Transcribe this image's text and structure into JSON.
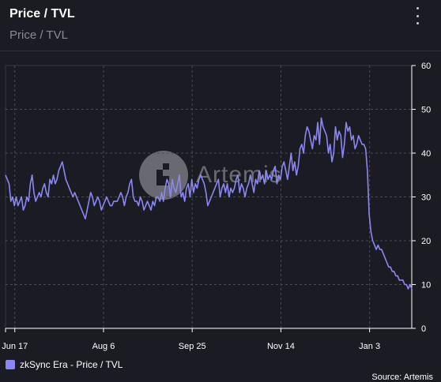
{
  "header": {
    "title": "Price / TVL",
    "subtitle": "Price / TVL"
  },
  "watermark": {
    "text": "Artemis"
  },
  "source": "Source: Artemis",
  "colors": {
    "line": "#8b87f2",
    "grid": "#4a4a58",
    "text": "#ffffff"
  },
  "chart_data": {
    "type": "line",
    "x_tick_labels": [
      "Jun 17",
      "Aug 6",
      "Sep 25",
      "Nov 14",
      "Jan 3"
    ],
    "x_tick_index": [
      3,
      53,
      103,
      153,
      203
    ],
    "y_ticks": [
      0,
      10,
      20,
      30,
      40,
      50,
      60
    ],
    "ylim": [
      0,
      60
    ],
    "grid": true,
    "legend": "bottom-left",
    "series": [
      {
        "name": "zkSync Era - Price / TVL",
        "values": [
          35,
          34,
          33,
          29,
          30,
          28,
          30,
          28,
          29,
          30,
          27,
          28,
          30,
          29,
          33,
          35,
          31,
          29,
          30,
          31,
          30,
          32,
          33,
          31,
          30,
          34,
          33,
          35,
          33,
          34,
          36,
          37,
          38,
          36,
          34,
          33,
          32,
          31,
          30,
          31,
          30,
          29,
          28,
          27,
          26,
          25,
          27,
          29,
          31,
          30,
          28,
          29,
          30,
          29,
          27,
          28,
          29,
          30,
          29,
          28,
          28,
          29,
          29,
          29,
          30,
          31,
          30,
          28,
          30,
          31,
          33,
          34,
          30,
          29,
          29,
          28,
          30,
          29,
          27,
          28,
          29,
          28,
          27,
          29,
          28,
          30,
          30,
          29,
          31,
          29,
          32,
          34,
          33,
          30,
          34,
          32,
          31,
          33,
          35,
          30,
          31,
          29,
          32,
          33,
          30,
          34,
          31,
          33,
          32,
          34,
          35,
          34,
          33,
          31,
          28,
          29,
          30,
          31,
          32,
          33,
          34,
          30,
          32,
          33,
          31,
          33,
          30,
          32,
          31,
          32,
          34,
          35,
          31,
          33,
          32,
          30,
          32,
          33,
          35,
          33,
          31,
          34,
          33,
          36,
          34,
          35,
          33,
          36,
          34,
          35,
          34,
          36,
          37,
          33,
          35,
          34,
          37,
          38,
          36,
          34,
          37,
          40,
          36,
          38,
          35,
          37,
          41,
          42,
          40,
          44,
          46,
          45,
          43,
          41,
          44,
          43,
          47,
          42,
          48,
          46,
          45,
          44,
          40,
          42,
          38,
          40,
          46,
          43,
          45,
          44,
          39,
          42,
          47,
          45,
          46,
          43,
          44,
          41,
          42,
          44,
          43,
          42,
          42,
          41,
          36,
          26,
          22,
          20,
          19,
          18,
          19,
          18,
          18,
          17,
          16,
          15,
          14,
          14,
          13,
          13,
          12,
          12,
          11,
          11,
          11,
          10,
          10,
          9,
          10,
          9
        ]
      }
    ]
  }
}
